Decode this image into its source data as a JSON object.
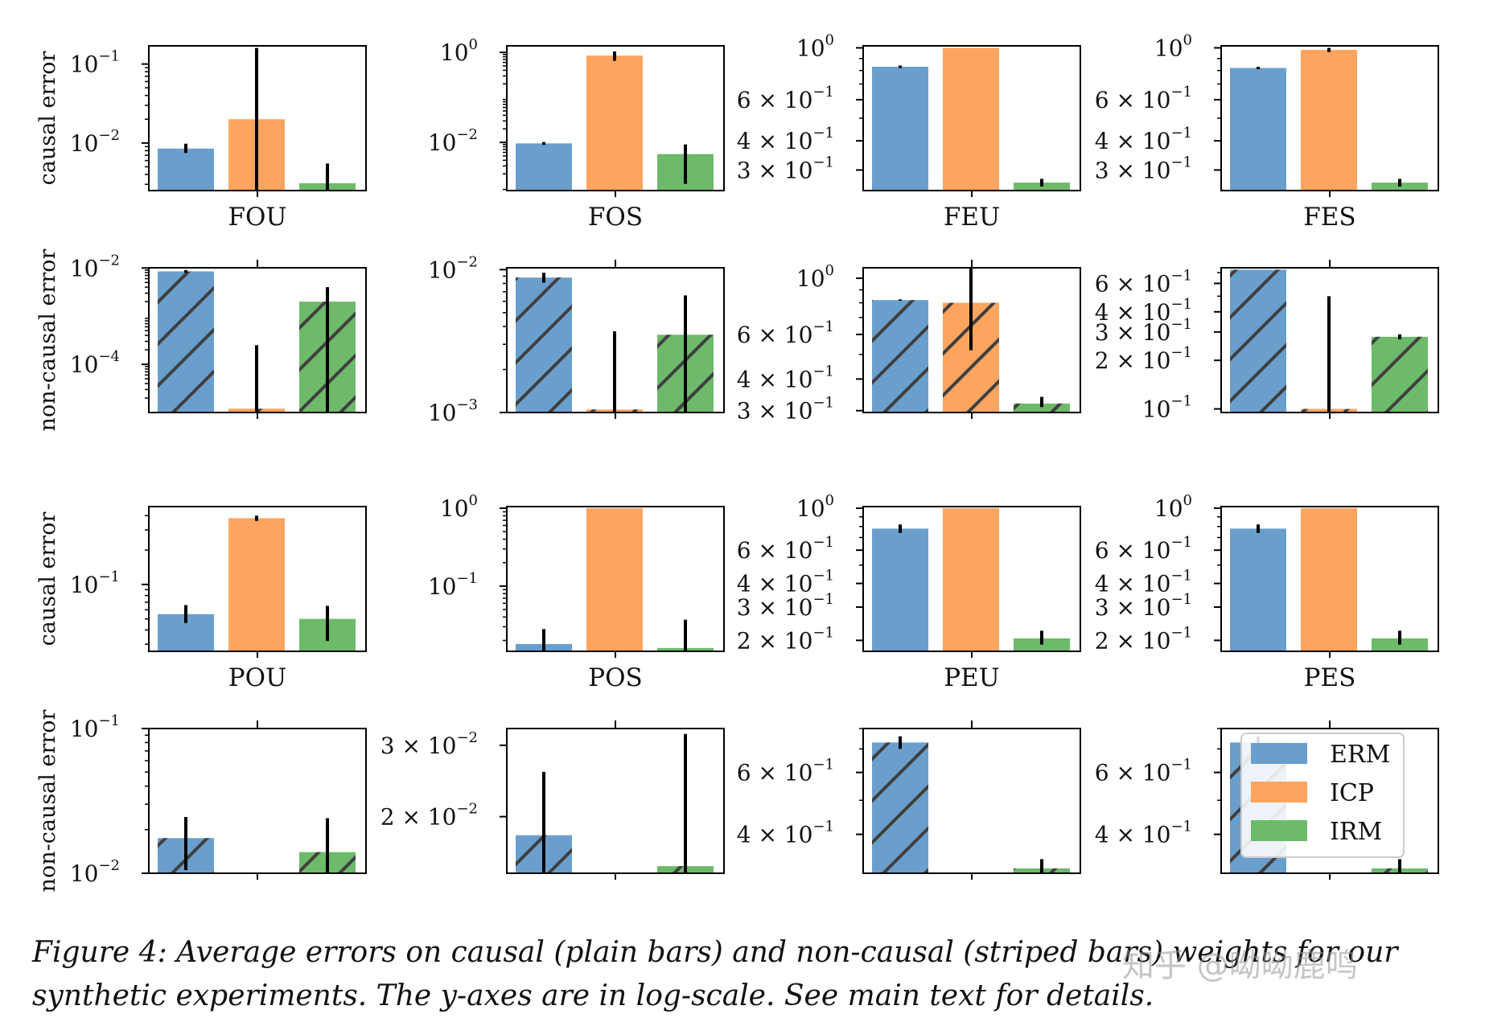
{
  "figure": {
    "caption_label": "Figure 4:",
    "caption_text": "Average errors on causal (plain bars) and non-causal (striped bars) weights for our synthetic experiments. The y-axes are in log-scale. See main text for details.",
    "watermark": "知乎 @呦呦鹿鸣"
  },
  "colors": {
    "ERM": "#6a9fcd",
    "ICP": "#fda45e",
    "IRM": "#6dba6a",
    "hatch": "#3f3f3f",
    "errorbar": "#000000"
  },
  "legend": {
    "entries": [
      "ERM",
      "ICP",
      "IRM"
    ],
    "location": "upper right of bottom-right panel"
  },
  "row_labels": [
    "causal error",
    "non-causal error",
    "causal error",
    "non-causal error"
  ],
  "chart_data": [
    {
      "type": "bar",
      "panel": "FOU causal",
      "categories": [
        "ERM",
        "ICP",
        "IRM"
      ],
      "xlabel": "FOU",
      "ylabel": "causal error",
      "yscale": "log",
      "ylim": [
        0.0025,
        0.17
      ],
      "hatched": false,
      "values": [
        0.0085,
        0.02,
        0.0031
      ],
      "err_low": [
        0.0075,
        0.0025,
        0.0025
      ],
      "err_high": [
        0.0098,
        0.16,
        0.0055
      ],
      "ticks": [
        {
          "v": 0.1,
          "m": "10",
          "e": "−1"
        },
        {
          "v": 0.01,
          "m": "10",
          "e": "−2"
        }
      ]
    },
    {
      "type": "bar",
      "panel": "FOS causal",
      "categories": [
        "ERM",
        "ICP",
        "IRM"
      ],
      "xlabel": "FOS",
      "ylabel": "",
      "yscale": "log",
      "ylim": [
        0.00085,
        1.4
      ],
      "hatched": false,
      "values": [
        0.0095,
        0.85,
        0.0055
      ],
      "err_low": [
        0.0088,
        0.65,
        0.0012
      ],
      "err_high": [
        0.0102,
        1.05,
        0.009
      ],
      "ticks": [
        {
          "v": 1,
          "m": "10",
          "e": "0"
        },
        {
          "v": 0.01,
          "m": "10",
          "e": "−2"
        }
      ]
    },
    {
      "type": "bar",
      "panel": "FEU causal",
      "categories": [
        "ERM",
        "ICP",
        "IRM"
      ],
      "xlabel": "FEU",
      "ylabel": "",
      "yscale": "log",
      "ylim": [
        0.245,
        1.02
      ],
      "hatched": false,
      "values": [
        0.83,
        1.0,
        0.265
      ],
      "err_low": [
        0.82,
        1.0,
        0.255
      ],
      "err_high": [
        0.84,
        1.0,
        0.275
      ],
      "ticks": [
        {
          "v": 1,
          "m": "10",
          "e": "0"
        },
        {
          "v": 0.6,
          "m": "6 × 10",
          "e": "−1"
        },
        {
          "v": 0.4,
          "m": "4 × 10",
          "e": "−1"
        },
        {
          "v": 0.3,
          "m": "3 × 10",
          "e": "−1"
        }
      ]
    },
    {
      "type": "bar",
      "panel": "FES causal",
      "categories": [
        "ERM",
        "ICP",
        "IRM"
      ],
      "xlabel": "FES",
      "ylabel": "",
      "yscale": "log",
      "ylim": [
        0.245,
        1.02
      ],
      "hatched": false,
      "values": [
        0.82,
        0.98,
        0.265
      ],
      "err_low": [
        0.81,
        0.96,
        0.255
      ],
      "err_high": [
        0.83,
        1.0,
        0.275
      ],
      "ticks": [
        {
          "v": 1,
          "m": "10",
          "e": "0"
        },
        {
          "v": 0.6,
          "m": "6 × 10",
          "e": "−1"
        },
        {
          "v": 0.4,
          "m": "4 × 10",
          "e": "−1"
        },
        {
          "v": 0.3,
          "m": "3 × 10",
          "e": "−1"
        }
      ]
    },
    {
      "type": "bar",
      "panel": "FOU non-causal",
      "categories": [
        "ERM",
        "ICP",
        "IRM"
      ],
      "xlabel": "",
      "ylabel": "non-causal error",
      "yscale": "log",
      "ylim": [
        1e-05,
        0.0101
      ],
      "hatched": true,
      "values": [
        0.0085,
        1.2e-05,
        0.002
      ],
      "err_low": [
        0.008,
        1e-05,
        1e-05
      ],
      "err_high": [
        0.009,
        0.00025,
        0.004
      ],
      "ticks": [
        {
          "v": 0.01,
          "m": "10",
          "e": "−2"
        },
        {
          "v": 0.0001,
          "m": "10",
          "e": "−4"
        }
      ]
    },
    {
      "type": "bar",
      "panel": "FOS non-causal",
      "categories": [
        "ERM",
        "ICP",
        "IRM"
      ],
      "xlabel": "",
      "ylabel": "",
      "yscale": "log",
      "ylim": [
        0.001,
        0.0103
      ],
      "hatched": true,
      "values": [
        0.0088,
        0.00105,
        0.0035
      ],
      "err_low": [
        0.0081,
        0.001,
        0.001
      ],
      "err_high": [
        0.0095,
        0.0037,
        0.0066
      ],
      "ticks": [
        {
          "v": 0.01,
          "m": "10",
          "e": "−2"
        },
        {
          "v": 0.001,
          "m": "10",
          "e": "−3"
        }
      ]
    },
    {
      "type": "bar",
      "panel": "FEU non-causal",
      "categories": [
        "ERM",
        "ICP",
        "IRM"
      ],
      "xlabel": "",
      "ylabel": "",
      "yscale": "log",
      "ylim": [
        0.295,
        1.1
      ],
      "hatched": true,
      "values": [
        0.82,
        0.8,
        0.32
      ],
      "err_low": [
        0.815,
        0.52,
        0.31
      ],
      "err_high": [
        0.825,
        1.15,
        0.34
      ],
      "ticks": [
        {
          "v": 1,
          "m": "10",
          "e": "0"
        },
        {
          "v": 0.6,
          "m": "6 × 10",
          "e": "−1"
        },
        {
          "v": 0.4,
          "m": "4 × 10",
          "e": "−1"
        },
        {
          "v": 0.3,
          "m": "3 × 10",
          "e": "−1"
        }
      ]
    },
    {
      "type": "bar",
      "panel": "FES non-causal",
      "categories": [
        "ERM",
        "ICP",
        "IRM"
      ],
      "xlabel": "",
      "ylabel": "",
      "yscale": "log",
      "ylim": [
        0.095,
        0.75
      ],
      "hatched": true,
      "values": [
        0.73,
        0.1,
        0.28
      ],
      "err_low": [
        0.73,
        0.095,
        0.27
      ],
      "err_high": [
        0.73,
        0.5,
        0.29
      ],
      "ticks": [
        {
          "v": 0.6,
          "m": "6 × 10",
          "e": "−1"
        },
        {
          "v": 0.4,
          "m": "4 × 10",
          "e": "−1"
        },
        {
          "v": 0.3,
          "m": "3 × 10",
          "e": "−1"
        },
        {
          "v": 0.2,
          "m": "2 × 10",
          "e": "−1"
        },
        {
          "v": 0.1,
          "m": "10",
          "e": "−1"
        }
      ]
    },
    {
      "type": "bar",
      "panel": "POU causal",
      "categories": [
        "ERM",
        "ICP",
        "IRM"
      ],
      "xlabel": "POU",
      "ylabel": "causal error",
      "yscale": "log",
      "ylim": [
        0.026,
        0.48
      ],
      "hatched": false,
      "values": [
        0.055,
        0.38,
        0.05
      ],
      "err_low": [
        0.046,
        0.36,
        0.032
      ],
      "err_high": [
        0.066,
        0.4,
        0.065
      ],
      "ticks": [
        {
          "v": 0.1,
          "m": "10",
          "e": "−1"
        }
      ]
    },
    {
      "type": "bar",
      "panel": "POS causal",
      "categories": [
        "ERM",
        "ICP",
        "IRM"
      ],
      "xlabel": "POS",
      "ylabel": "",
      "yscale": "log",
      "ylim": [
        0.0145,
        1.05
      ],
      "hatched": false,
      "values": [
        0.018,
        1.0,
        0.016
      ],
      "err_low": [
        0.0145,
        1.0,
        0.0145
      ],
      "err_high": [
        0.028,
        1.0,
        0.037
      ],
      "ticks": [
        {
          "v": 1,
          "m": "10",
          "e": "0"
        },
        {
          "v": 0.1,
          "m": "10",
          "e": "−1"
        }
      ]
    },
    {
      "type": "bar",
      "panel": "PEU causal",
      "categories": [
        "ERM",
        "ICP",
        "IRM"
      ],
      "xlabel": "PEU",
      "ylabel": "",
      "yscale": "log",
      "ylim": [
        0.175,
        1.02
      ],
      "hatched": false,
      "values": [
        0.78,
        1.0,
        0.205
      ],
      "err_low": [
        0.74,
        1.0,
        0.19
      ],
      "err_high": [
        0.82,
        1.0,
        0.225
      ],
      "ticks": [
        {
          "v": 1,
          "m": "10",
          "e": "0"
        },
        {
          "v": 0.6,
          "m": "6 × 10",
          "e": "−1"
        },
        {
          "v": 0.4,
          "m": "4 × 10",
          "e": "−1"
        },
        {
          "v": 0.3,
          "m": "3 × 10",
          "e": "−1"
        },
        {
          "v": 0.2,
          "m": "2 × 10",
          "e": "−1"
        }
      ]
    },
    {
      "type": "bar",
      "panel": "PES causal",
      "categories": [
        "ERM",
        "ICP",
        "IRM"
      ],
      "xlabel": "PES",
      "ylabel": "",
      "yscale": "log",
      "ylim": [
        0.175,
        1.02
      ],
      "hatched": false,
      "values": [
        0.78,
        1.0,
        0.205
      ],
      "err_low": [
        0.74,
        1.0,
        0.19
      ],
      "err_high": [
        0.82,
        1.0,
        0.225
      ],
      "ticks": [
        {
          "v": 1,
          "m": "10",
          "e": "0"
        },
        {
          "v": 0.6,
          "m": "6 × 10",
          "e": "−1"
        },
        {
          "v": 0.4,
          "m": "4 × 10",
          "e": "−1"
        },
        {
          "v": 0.3,
          "m": "3 × 10",
          "e": "−1"
        },
        {
          "v": 0.2,
          "m": "2 × 10",
          "e": "−1"
        }
      ]
    },
    {
      "type": "bar",
      "panel": "POU non-causal",
      "categories": [
        "ERM",
        "ICP",
        "IRM"
      ],
      "xlabel": "",
      "ylabel": "non-causal error",
      "yscale": "log",
      "ylim": [
        0.01,
        0.1
      ],
      "hatched": true,
      "values": [
        0.0175,
        0.01,
        0.014
      ],
      "err_low": [
        0.0105,
        0.01,
        0.01
      ],
      "err_high": [
        0.0245,
        0.01,
        0.024
      ],
      "ticks": [
        {
          "v": 0.1,
          "m": "10",
          "e": "−1"
        },
        {
          "v": 0.01,
          "m": "10",
          "e": "−2"
        }
      ]
    },
    {
      "type": "bar",
      "panel": "POS non-causal",
      "categories": [
        "ERM",
        "ICP",
        "IRM"
      ],
      "xlabel": "",
      "ylabel": "",
      "yscale": "log",
      "ylim": [
        0.0145,
        0.033
      ],
      "hatched": true,
      "values": [
        0.018,
        0.0145,
        0.0151
      ],
      "err_low": [
        0.0145,
        0.0145,
        0.0145
      ],
      "err_high": [
        0.0258,
        0.0145,
        0.032
      ],
      "ticks": [
        {
          "v": 0.03,
          "m": "3 × 10",
          "e": "−2"
        },
        {
          "v": 0.02,
          "m": "2 × 10",
          "e": "−2"
        }
      ]
    },
    {
      "type": "bar",
      "panel": "PEU non-causal",
      "categories": [
        "ERM",
        "ICP",
        "IRM"
      ],
      "xlabel": "",
      "ylabel": "",
      "yscale": "log",
      "ylim": [
        0.31,
        0.8
      ],
      "hatched": true,
      "values": [
        0.73,
        0.31,
        0.32
      ],
      "err_low": [
        0.7,
        0.31,
        0.31
      ],
      "err_high": [
        0.76,
        0.31,
        0.34
      ],
      "ticks": [
        {
          "v": 0.6,
          "m": "6 × 10",
          "e": "−1"
        },
        {
          "v": 0.4,
          "m": "4 × 10",
          "e": "−1"
        }
      ]
    },
    {
      "type": "bar",
      "panel": "PES non-causal",
      "categories": [
        "ERM",
        "ICP",
        "IRM"
      ],
      "xlabel": "",
      "ylabel": "",
      "yscale": "log",
      "ylim": [
        0.31,
        0.8
      ],
      "hatched": true,
      "values": [
        0.73,
        0.31,
        0.32
      ],
      "err_low": [
        0.7,
        0.31,
        0.31
      ],
      "err_high": [
        0.76,
        0.31,
        0.34
      ],
      "ticks": [
        {
          "v": 0.6,
          "m": "6 × 10",
          "e": "−1"
        },
        {
          "v": 0.4,
          "m": "4 × 10",
          "e": "−1"
        }
      ]
    }
  ]
}
